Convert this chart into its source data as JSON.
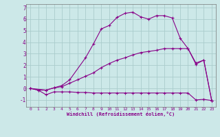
{
  "background_color": "#cce8e8",
  "grid_color": "#aacccc",
  "line_color": "#880088",
  "xlabel": "Windchill (Refroidissement éolien,°C)",
  "xlim": [
    -0.5,
    23.5
  ],
  "ylim": [
    -1.6,
    7.3
  ],
  "yticks": [
    -1,
    0,
    1,
    2,
    3,
    4,
    5,
    6,
    7
  ],
  "xticks": [
    0,
    1,
    2,
    3,
    4,
    5,
    6,
    7,
    8,
    9,
    10,
    11,
    12,
    13,
    14,
    15,
    16,
    17,
    18,
    19,
    20,
    21,
    22,
    23
  ],
  "line1_x": [
    0,
    1,
    2,
    3,
    4,
    5,
    6,
    7,
    8,
    9,
    10,
    11,
    12,
    13,
    14,
    15,
    16,
    17,
    18,
    19,
    20,
    21,
    22,
    23
  ],
  "line1_y": [
    0.0,
    -0.15,
    -0.55,
    -0.3,
    -0.3,
    -0.3,
    -0.35,
    -0.35,
    -0.4,
    -0.4,
    -0.4,
    -0.4,
    -0.4,
    -0.4,
    -0.4,
    -0.4,
    -0.4,
    -0.4,
    -0.4,
    -0.4,
    -0.4,
    -1.0,
    -0.95,
    -1.05
  ],
  "line2_x": [
    0,
    2,
    3,
    4,
    5,
    6,
    7,
    8,
    9,
    10,
    11,
    12,
    13,
    14,
    15,
    16,
    17,
    18,
    19,
    20,
    21,
    22,
    23
  ],
  "line2_y": [
    0.0,
    -0.15,
    0.05,
    0.15,
    0.45,
    0.75,
    1.05,
    1.35,
    1.8,
    2.15,
    2.45,
    2.65,
    2.9,
    3.1,
    3.2,
    3.3,
    3.45,
    3.45,
    3.45,
    3.45,
    2.2,
    2.45,
    -1.05
  ],
  "line3_x": [
    0,
    1,
    2,
    3,
    4,
    5,
    7,
    8,
    9,
    10,
    11,
    12,
    13,
    14,
    15,
    16,
    17,
    18,
    19,
    20,
    21,
    22,
    23
  ],
  "line3_y": [
    0.0,
    -0.15,
    -0.15,
    0.05,
    0.25,
    0.75,
    2.65,
    3.85,
    5.15,
    5.45,
    6.15,
    6.5,
    6.6,
    6.2,
    6.0,
    6.3,
    6.3,
    6.1,
    4.35,
    3.45,
    2.1,
    2.45,
    -1.05
  ]
}
